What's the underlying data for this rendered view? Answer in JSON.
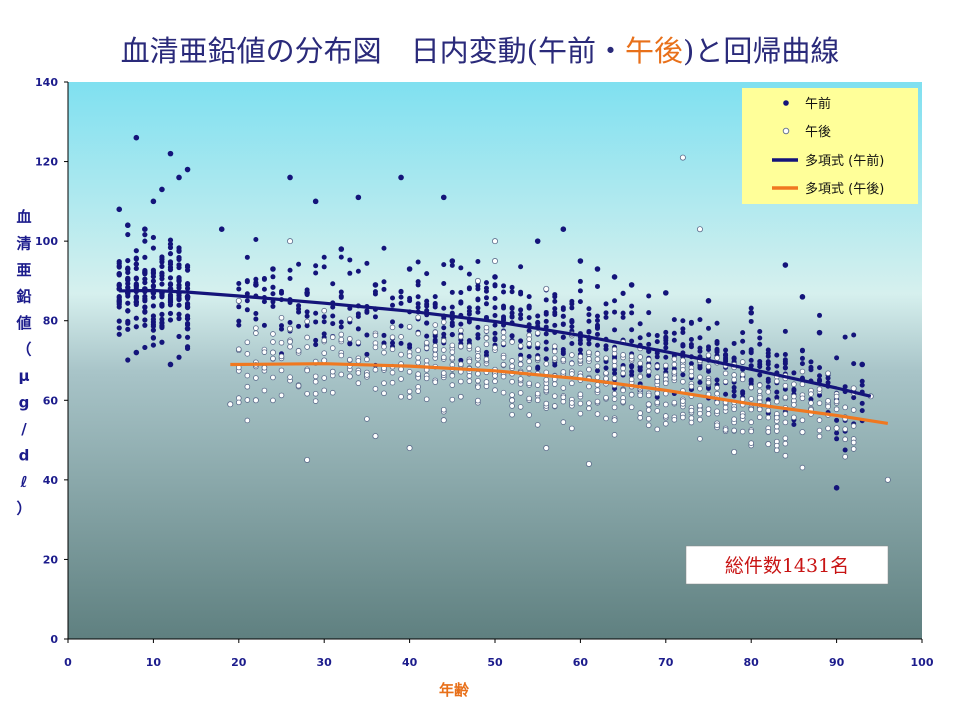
{
  "chart_data": {
    "type": "scatter",
    "title_parts": [
      {
        "text": "血清亜鉛値の分布図　日内変動(午前・",
        "color": "#2a2a7a"
      },
      {
        "text": "午後",
        "color": "#e8701a"
      },
      {
        "text": ")と回帰曲線",
        "color": "#2a2a7a"
      }
    ],
    "xlabel": "年齢",
    "ylabel_chars": [
      "血",
      "清",
      "亜",
      "鉛",
      "値",
      "（",
      "μ",
      "g",
      "/",
      "d",
      "ℓ",
      "）"
    ],
    "xlim": [
      0,
      100
    ],
    "ylim": [
      0,
      140
    ],
    "xticks": [
      "0",
      "10",
      "20",
      "30",
      "40",
      "50",
      "60",
      "70",
      "80",
      "90",
      "100"
    ],
    "yticks": [
      "0",
      "20",
      "40",
      "60",
      "80",
      "100",
      "120",
      "140"
    ],
    "legend": {
      "position": "top-right",
      "items": [
        {
          "label": "午前",
          "kind": "filled-marker"
        },
        {
          "label": "午後",
          "kind": "open-marker"
        },
        {
          "label": "多項式 (午前)",
          "kind": "line",
          "color": "#14147a"
        },
        {
          "label": "多項式 (午後)",
          "kind": "line",
          "color": "#f07820"
        }
      ]
    },
    "annotation": "総件数1431名",
    "colors": {
      "am_marker": "#14147a",
      "pm_marker_fill": "#ffffff",
      "pm_marker_stroke": "#5a6a8a",
      "am_curve": "#14147a",
      "pm_curve": "#f07820",
      "bg_top": "#7fe0f0",
      "bg_bottom": "#5f8080",
      "legend_bg": "#ffff99"
    },
    "series": [
      {
        "name": "午前",
        "x": [
          6,
          7,
          8,
          9,
          10,
          11,
          12,
          13,
          14,
          6,
          7,
          8,
          9,
          10,
          11,
          12,
          13,
          14,
          8,
          12,
          14,
          26,
          29,
          34,
          39,
          44,
          18,
          22,
          24,
          28,
          32,
          36,
          40,
          45,
          50,
          55,
          58,
          60,
          62,
          64,
          66,
          70,
          75,
          80,
          84,
          86,
          88,
          90,
          93
        ],
        "y": [
          88,
          87,
          86,
          88,
          87,
          87,
          88,
          87,
          86,
          108,
          104,
          126,
          103,
          110,
          113,
          122,
          116,
          118,
          72,
          69,
          78,
          116,
          110,
          111,
          116,
          111,
          103,
          89,
          93,
          87,
          98,
          89,
          93,
          95,
          91,
          100,
          103,
          95,
          93,
          91,
          89,
          87,
          85,
          82,
          94,
          86,
          77,
          38,
          69
        ]
      },
      {
        "name": "午後",
        "x": [
          19,
          20,
          22,
          24,
          26,
          28,
          30,
          33,
          36,
          40,
          44,
          48,
          50,
          52,
          56,
          60,
          64,
          68,
          72,
          74,
          78,
          82,
          86,
          90,
          92,
          94,
          96,
          26,
          50,
          72,
          56,
          61
        ],
        "y": [
          59,
          85,
          60,
          72,
          100,
          45,
          70,
          66,
          51,
          48,
          55,
          90,
          100,
          60,
          48,
          66,
          55,
          59,
          121,
          103,
          47,
          49,
          52,
          53,
          63,
          61,
          40,
          78,
          95,
          70,
          88,
          44
        ]
      }
    ],
    "curves": [
      {
        "name": "多項式 (午前)",
        "x": [
          6,
          10,
          14,
          20,
          30,
          40,
          50,
          60,
          70,
          80,
          90,
          94
        ],
        "y": [
          87.5,
          87.6,
          87.2,
          86.2,
          84.4,
          82.4,
          79.8,
          76.3,
          72.2,
          67.8,
          63.1,
          61.0
        ]
      },
      {
        "name": "多項式 (午後)",
        "x": [
          19,
          30,
          40,
          50,
          60,
          70,
          80,
          90,
          96
        ],
        "y": [
          69.0,
          69.2,
          68.6,
          67.4,
          65.4,
          62.5,
          59.1,
          56.2,
          54.2
        ]
      }
    ]
  }
}
